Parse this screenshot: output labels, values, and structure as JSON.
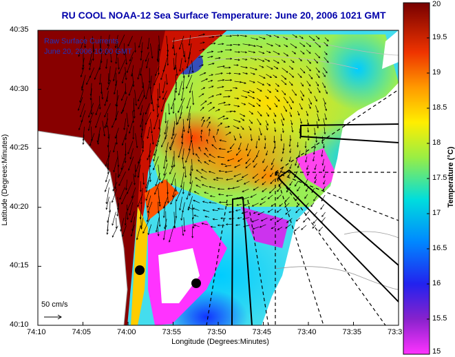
{
  "chart_data": {
    "type": "heatmap",
    "title": "RU COOL  NOAA-12  Sea Surface Temperature:  June 20, 2006 1021 GMT",
    "xlabel": "Longitude (Degrees:Minutes)",
    "ylabel": "Latitude (Degrees:Minutes)",
    "x_ticks": [
      "74:10",
      "74:05",
      "74:00",
      "73:55",
      "73:50",
      "73:45",
      "73:40",
      "73:35",
      "73:3"
    ],
    "y_ticks": [
      "40:35",
      "40:30",
      "40:25",
      "40:20",
      "40:15",
      "40:10"
    ],
    "colorbar": {
      "label": "Temperature (°C)",
      "range": [
        15,
        20
      ],
      "ticks": [
        "20",
        "19.5",
        "19",
        "18.5",
        "18",
        "17.5",
        "17",
        "16.5",
        "16",
        "15.5",
        "15"
      ]
    },
    "legend": {
      "line1": "Raw Surface Currents",
      "line2": "June 20, 2006 10:00 GMT"
    },
    "vector_scale_label": "50 cm/s",
    "colors": {
      "land": "#ffffff",
      "title": "#0000aa",
      "legend": "#2233bb"
    }
  }
}
